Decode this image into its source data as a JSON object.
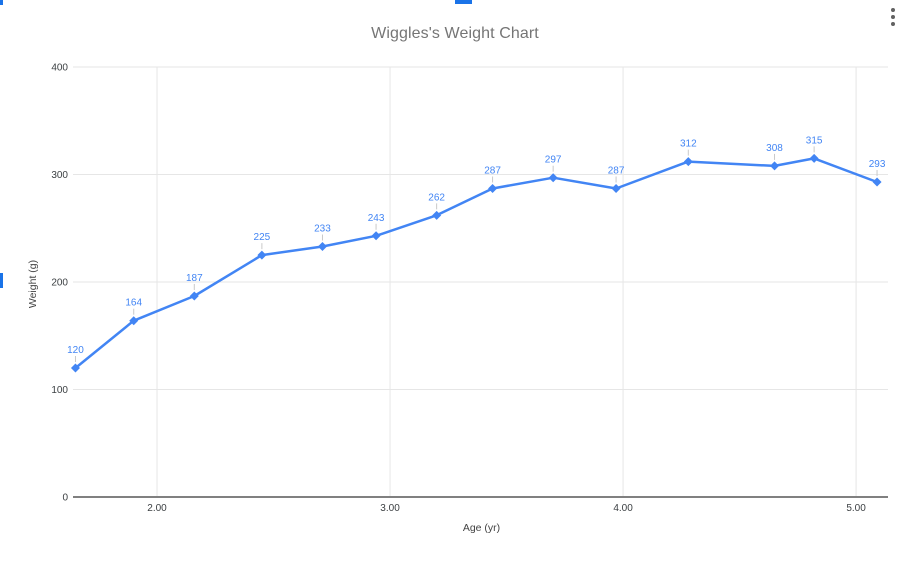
{
  "chart_card": {
    "options_icon": "kebab-vertical-icon",
    "selection": {
      "handle_color": "#1a73e8",
      "handles": [
        "top-left-corner",
        "top-center",
        "left-middle"
      ]
    }
  },
  "chart_data": {
    "type": "line",
    "title": "Wiggles's Weight Chart",
    "xlabel": "Age (yr)",
    "ylabel": "Weight (g)",
    "series": [
      {
        "name": "Weight",
        "x": [
          1.65,
          1.9,
          2.16,
          2.45,
          2.71,
          2.94,
          3.2,
          3.44,
          3.7,
          3.97,
          4.28,
          4.65,
          4.82,
          5.09
        ],
        "values": [
          120,
          164,
          187,
          225,
          233,
          243,
          262,
          287,
          297,
          287,
          312,
          308,
          315,
          293
        ]
      }
    ],
    "data_labels": [
      "120",
      "164",
      "187",
      "225",
      "233",
      "243",
      "262",
      "287",
      "297",
      "287",
      "312",
      "308",
      "315",
      "293"
    ],
    "xlim": [
      1.648,
      5.137
    ],
    "ylim": [
      0,
      400
    ],
    "x_ticks": [
      {
        "value": 2,
        "label": "2.00"
      },
      {
        "value": 3,
        "label": "3.00"
      },
      {
        "value": 4,
        "label": "4.00"
      },
      {
        "value": 5,
        "label": "5.00"
      }
    ],
    "y_ticks": [
      {
        "value": 0,
        "label": "0"
      },
      {
        "value": 100,
        "label": "100"
      },
      {
        "value": 200,
        "label": "200"
      },
      {
        "value": 300,
        "label": "300"
      },
      {
        "value": 400,
        "label": "400"
      }
    ],
    "grid": true,
    "legend": "none",
    "colors": {
      "series": "#4285f4",
      "data_label": "#4285f4",
      "leader_line": "#c9c9c9",
      "gridline": "#e6e6e6",
      "baseline": "#808080",
      "tick_text": "#3c4043",
      "title_text": "#757575",
      "axis_title_text": "#434343"
    }
  }
}
